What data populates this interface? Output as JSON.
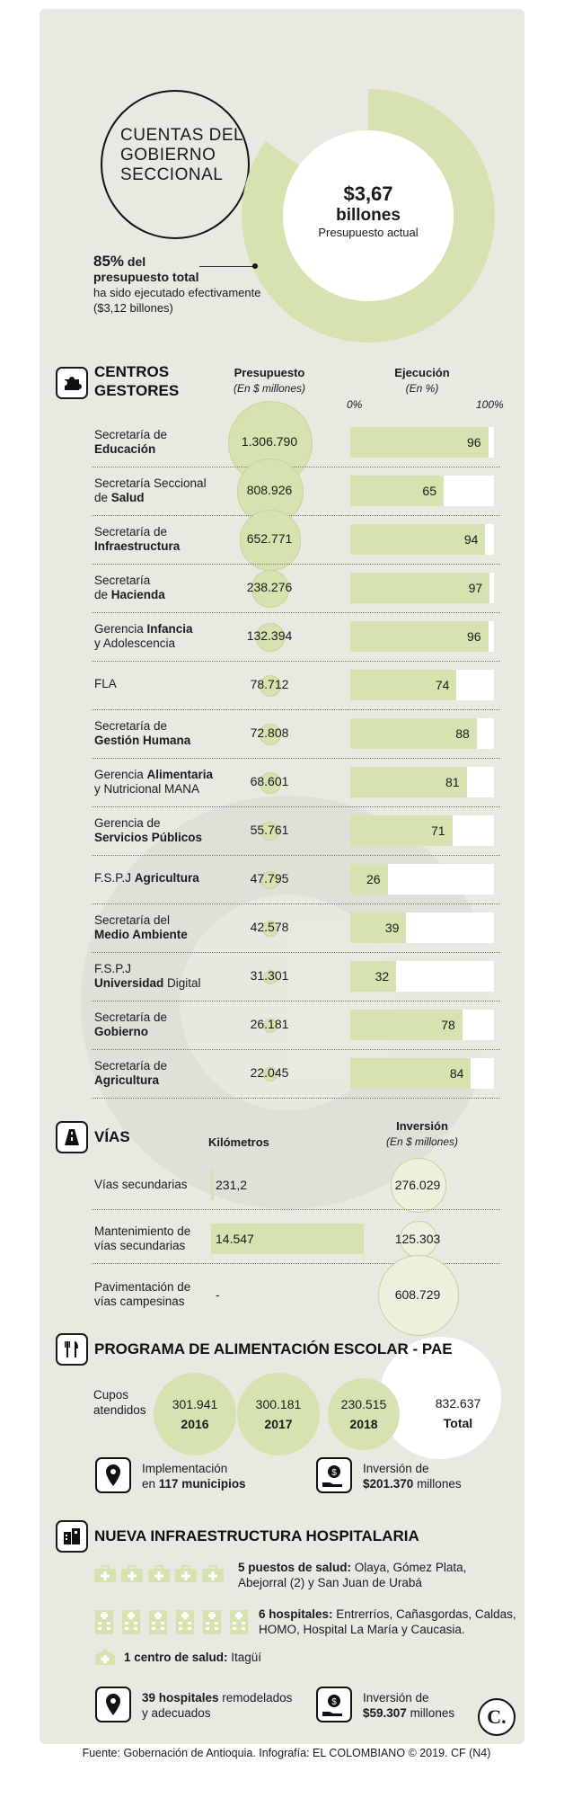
{
  "header": {
    "title_lines": [
      "CUENTAS DEL",
      "GOBIERNO",
      "SECCIONAL"
    ],
    "donut_value": "$3,67",
    "donut_unit": "billones",
    "donut_caption": "Presupuesto actual",
    "executed_pct": "85%",
    "executed_line1_suffix": "del",
    "executed_line2": "presupuesto total",
    "executed_line3": "ha sido ejecutado efectivamente",
    "executed_line4": "($3,12 billones)"
  },
  "centros": {
    "title_line1": "CENTROS",
    "title_line2": "GESTORES",
    "col_budget": "Presupuesto",
    "col_budget_unit": "(En $ millones)",
    "col_exec": "Ejecución",
    "col_exec_unit": "(En %)",
    "axis_min": "0%",
    "axis_max": "100%"
  },
  "chart_data": [
    {
      "type": "bar",
      "categories": [
        "Secretaría de Educación",
        "Secretaría Seccional de Salud",
        "Secretaría de Infraestructura",
        "Secretaría de Hacienda",
        "Gerencia Infancia y Adolescencia",
        "FLA",
        "Secretaría de Gestión Humana",
        "Gerencia Alimentaria y Nutricional MANA",
        "Gerencia de Servicios Públicos",
        "F.S.P.J Agricultura",
        "Secretaría del Medio Ambiente",
        "F.S.P.J Universidad Digital",
        "Secretaría de Gobierno",
        "Secretaría de Agricultura"
      ],
      "series": [
        {
          "name": "Presupuesto",
          "values": [
            1306790,
            808926,
            652771,
            238276,
            132394,
            78712,
            72808,
            68601,
            55761,
            47795,
            42578,
            31301,
            26181,
            22045
          ]
        },
        {
          "name": "Ejecución",
          "values": [
            96,
            65,
            94,
            97,
            96,
            74,
            88,
            81,
            71,
            26,
            39,
            32,
            78,
            84
          ]
        }
      ],
      "ylim": [
        0,
        100
      ]
    },
    {
      "type": "table",
      "categories": [
        "Vías secundarias",
        "Mantenimiento de vías secundarias",
        "Pavimentación de vías campesinas"
      ],
      "series": [
        {
          "name": "Kilómetros",
          "values": [
            231.2,
            14547,
            null
          ]
        },
        {
          "name": "Inversión",
          "values": [
            276029,
            125303,
            608729
          ]
        }
      ]
    },
    {
      "type": "table",
      "categories": [
        "2016",
        "2017",
        "2018",
        "Total"
      ],
      "series": [
        {
          "name": "Cupos atendidos",
          "values": [
            301941,
            300181,
            230515,
            832637
          ]
        }
      ]
    }
  ],
  "rows": [
    {
      "l1": "Secretaría de",
      "l2": "Educación",
      "budget": "1.306.790",
      "exec": "96"
    },
    {
      "l1": "Secretaría Seccional",
      "l2": "de ",
      "l2b": "Salud",
      "budget": "808.926",
      "exec": "65"
    },
    {
      "l1": "Secretaría de",
      "l2": "Infraestructura",
      "budget": "652.771",
      "exec": "94"
    },
    {
      "l1": "Secretaría",
      "l2": "de ",
      "l2b": "Hacienda",
      "budget": "238.276",
      "exec": "97"
    },
    {
      "l1": "Gerencia ",
      "l1b": "Infancia",
      "l2": "y Adolescencia",
      "budget": "132.394",
      "exec": "96"
    },
    {
      "l1": "FLA",
      "l2": "",
      "budget": "78.712",
      "exec": "74"
    },
    {
      "l1": "Secretaría de",
      "l2": "Gestión Humana",
      "budget": "72.808",
      "exec": "88"
    },
    {
      "l1": "Gerencia ",
      "l1b": "Alimentaria",
      "l2": "y Nutricional MANA",
      "budget": "68.601",
      "exec": "81"
    },
    {
      "l1": "Gerencia de",
      "l2": "Servicios Públicos",
      "budget": "55.761",
      "exec": "71"
    },
    {
      "l1": "F.S.P.J ",
      "l1b": "Agricultura",
      "l2": "",
      "budget": "47.795",
      "exec": "26"
    },
    {
      "l1": "Secretaría del",
      "l2": "Medio Ambiente",
      "budget": "42.578",
      "exec": "39"
    },
    {
      "l1": "F.S.P.J",
      "l2": "Universidad",
      "l2c": " Digital",
      "budget": "31.301",
      "exec": "32"
    },
    {
      "l1": "Secretaría de",
      "l2": "Gobierno",
      "budget": "26.181",
      "exec": "78"
    },
    {
      "l1": "Secretaría de",
      "l2": "Agricultura",
      "budget": "22.045",
      "exec": "84"
    }
  ],
  "vias": {
    "title": "VÍAS",
    "col_km": "Kilómetros",
    "col_inv": "Inversión",
    "col_inv_unit": "(En $ millones)",
    "rows": [
      {
        "l1": "Vías secundarias",
        "l2": "",
        "km": "231,2",
        "inv": "276.029"
      },
      {
        "l1": "Mantenimiento de",
        "l2": "vías secundarias",
        "km": "14.547",
        "inv": "125.303"
      },
      {
        "l1": "Pavimentación de",
        "l2": "vías campesinas",
        "km": "-",
        "inv": "608.729"
      }
    ]
  },
  "pae": {
    "title": "PROGRAMA DE ALIMENTACIÓN ESCOLAR - PAE",
    "label_l1": "Cupos",
    "label_l2": "atendidos",
    "years": [
      {
        "value": "301.941",
        "year": "2016"
      },
      {
        "value": "300.181",
        "year": "2017"
      },
      {
        "value": "230.515",
        "year": "2018"
      }
    ],
    "total_value": "832.637",
    "total_label": "Total",
    "impl_l1": "Implementación",
    "impl_l2a": "en ",
    "impl_l2b": "117 municipios",
    "inv_l1": "Inversión de",
    "inv_l2a": "$201.370",
    "inv_l2b": " millones"
  },
  "hosp": {
    "title": "NUEVA INFRAESTRUCTURA HOSPITALARIA",
    "puestos_bold": "5 puestos de salud:",
    "puestos_text1": " Olaya, Gómez Plata,",
    "puestos_text2": "Abejorral (2) y San Juan de Urabá",
    "hosp_bold": "6 hospitales:",
    "hosp_text1": " Entrerríos, Cañasgordas, Caldas,",
    "hosp_text2": "HOMO, Hospital La María y Caucasia.",
    "centro_bold": "1 centro de salud:",
    "centro_text": " Itagüí",
    "rem_bold": "39 hospitales",
    "rem_text1": " remodelados",
    "rem_text2": "y adecuados",
    "inv_l1": "Inversión de",
    "inv_l2a": "$59.307",
    "inv_l2b": " millones"
  },
  "footer": "Fuente: Gobernación de Antioquia. Infografía: EL COLOMBIANO © 2019. CF (N4)",
  "logo_letter": "C.",
  "colors": {
    "accent": "#d6e2b0",
    "background": "#e9e9e2"
  }
}
